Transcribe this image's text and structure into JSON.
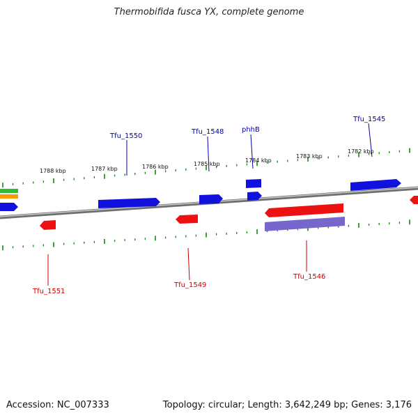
{
  "title": "Thermobifida fusca YX, complete genome",
  "footer": {
    "accession": "Accession: NC_007333",
    "stats": "Topology: circular; Length: 3,642,249 bp; Genes: 3,176"
  },
  "colors": {
    "forward_gene": "#1111dd",
    "reverse_gene": "#ee1111",
    "purple_feature": "#7766cc",
    "green_feature": "#33bb33",
    "orange_feature": "#ff9900",
    "tick": "#118811",
    "backbone": "#7a7a7a",
    "forward_label": "#0000aa",
    "reverse_label": "#cc0000"
  },
  "scale": {
    "unit": "kbp",
    "labels": [
      "1788 kbp",
      "1787 kbp",
      "1786 kbp",
      "1785 kbp",
      "1784 kbp",
      "1783 kbp",
      "1782 kbp"
    ]
  },
  "genes": {
    "forward": [
      {
        "label": "Tfu_1550"
      },
      {
        "label": "Tfu_1548"
      },
      {
        "label": "phhB"
      },
      {
        "label": "Tfu_1545"
      }
    ],
    "reverse": [
      {
        "label": "Tfu_1551"
      },
      {
        "label": "Tfu_1549"
      },
      {
        "label": "Tfu_1546"
      }
    ]
  }
}
